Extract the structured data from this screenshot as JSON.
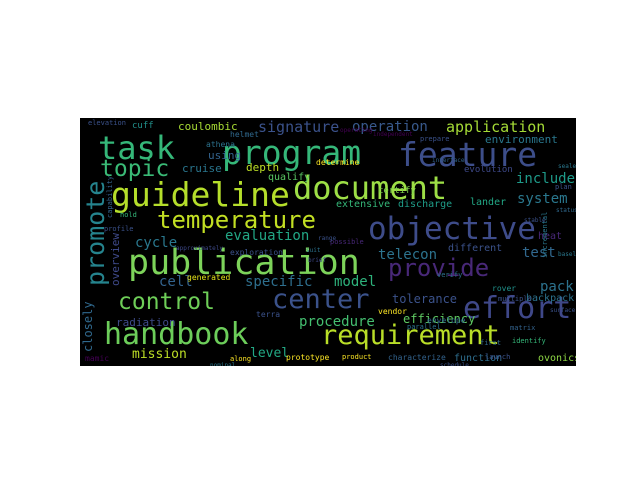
{
  "words": [
    {
      "text": "publication",
      "color": "#7dd35a"
    },
    {
      "text": "document",
      "color": "#9ddf46"
    },
    {
      "text": "guideline",
      "color": "#b5de2b"
    },
    {
      "text": "objective",
      "color": "#3e4c8a"
    },
    {
      "text": "program",
      "color": "#35b779"
    },
    {
      "text": "handbook",
      "color": "#6ccd5a"
    },
    {
      "text": "feature",
      "color": "#3d4e8a"
    },
    {
      "text": "requirement",
      "color": "#b9de28"
    },
    {
      "text": "center",
      "color": "#3b528b"
    },
    {
      "text": "effort",
      "color": "#3f4889"
    },
    {
      "text": "temperature",
      "color": "#c2df23"
    },
    {
      "text": "task",
      "color": "#35b779"
    },
    {
      "text": "provide",
      "color": "#482878"
    },
    {
      "text": "control",
      "color": "#6ece58"
    },
    {
      "text": "topic",
      "color": "#3aba76"
    },
    {
      "text": "promote",
      "color": "#25848e"
    },
    {
      "text": "signature",
      "color": "#3b528b"
    },
    {
      "text": "operation",
      "color": "#38598c"
    },
    {
      "text": "application",
      "color": "#a5db36"
    },
    {
      "text": "include",
      "color": "#1e9b8a"
    },
    {
      "text": "system",
      "color": "#2a788e"
    },
    {
      "text": "evaluation",
      "color": "#22a785"
    },
    {
      "text": "telecon",
      "color": "#2c738e"
    },
    {
      "text": "specific",
      "color": "#2e6f8e"
    },
    {
      "text": "model",
      "color": "#2eb37c"
    },
    {
      "text": "cell",
      "color": "#33638d"
    },
    {
      "text": "cycle",
      "color": "#2a788e"
    },
    {
      "text": "procedure",
      "color": "#44bf70"
    },
    {
      "text": "efficiency",
      "color": "#5ec962"
    },
    {
      "text": "pack",
      "color": "#2c728e"
    },
    {
      "text": "test",
      "color": "#31688e"
    },
    {
      "text": "tolerance",
      "color": "#3b528b"
    },
    {
      "text": "level",
      "color": "#22a884"
    },
    {
      "text": "mission",
      "color": "#bddf26"
    },
    {
      "text": "radiation",
      "color": "#3e4a89"
    },
    {
      "text": "closely",
      "color": "#30698e"
    },
    {
      "text": "overview",
      "color": "#3e4989"
    },
    {
      "text": "coulombic",
      "color": "#a8db34"
    },
    {
      "text": "depth",
      "color": "#bddf26"
    },
    {
      "text": "cruise",
      "color": "#2a768e"
    },
    {
      "text": "qualify",
      "color": "#5ac864"
    },
    {
      "text": "extensive",
      "color": "#35b779"
    },
    {
      "text": "discharge",
      "color": "#1f9e89"
    },
    {
      "text": "using",
      "color": "#33638d"
    },
    {
      "text": "different",
      "color": "#3b528b"
    },
    {
      "text": "lander",
      "color": "#22a785"
    },
    {
      "text": "environment",
      "color": "#2a788e"
    },
    {
      "text": "heat",
      "color": "#482878"
    },
    {
      "text": "backpack",
      "color": "#2c728e"
    },
    {
      "text": "function",
      "color": "#2e6e8e"
    },
    {
      "text": "ovonics",
      "color": "#8ed645"
    },
    {
      "text": "prototype",
      "color": "#fde725"
    },
    {
      "text": "generated",
      "color": "#e5e419"
    },
    {
      "text": "determine",
      "color": "#fde725"
    },
    {
      "text": "evolution",
      "color": "#3e4989"
    },
    {
      "text": "helmet",
      "color": "#30698e"
    },
    {
      "text": "athena",
      "color": "#2c728e"
    },
    {
      "text": "cuff",
      "color": "#21918c"
    },
    {
      "text": "rover",
      "color": "#20928c"
    },
    {
      "text": "vendor",
      "color": "#fde725"
    },
    {
      "text": "parallel",
      "color": "#2c728e"
    },
    {
      "text": "envelope",
      "color": "#31688e"
    },
    {
      "text": "characterize",
      "color": "#33638d"
    },
    {
      "text": "certify",
      "color": "#7fd34e"
    },
    {
      "text": "exploration",
      "color": "#3b528b"
    },
    {
      "text": "terra",
      "color": "#3b528b"
    },
    {
      "text": "mamic",
      "color": "#440154"
    },
    {
      "text": "identify",
      "color": "#35b779"
    },
    {
      "text": "launch",
      "color": "#3b528b"
    },
    {
      "text": "matrix",
      "color": "#33638d"
    },
    {
      "text": "multiple",
      "color": "#3b528b"
    },
    {
      "text": "along",
      "color": "#fde725"
    },
    {
      "text": "first",
      "color": "#30698e"
    },
    {
      "text": "prepare",
      "color": "#3b528b"
    },
    {
      "text": "incremental",
      "color": "#2a788e"
    },
    {
      "text": "elevation",
      "color": "#3b528b"
    },
    {
      "text": "possible",
      "color": "#482878"
    },
    {
      "text": "profile",
      "color": "#3b528b"
    },
    {
      "text": "hold",
      "color": "#35b779"
    },
    {
      "text": "product",
      "color": "#fde725"
    },
    {
      "text": "nominal",
      "color": "#2a788e"
    },
    {
      "text": "approximately",
      "color": "#3e4989"
    },
    {
      "text": "operating",
      "color": "#440154"
    },
    {
      "text": "independent",
      "color": "#440154"
    },
    {
      "text": "stable",
      "color": "#3b528b"
    },
    {
      "text": "sealed",
      "color": "#2a788e"
    },
    {
      "text": "capability",
      "color": "#33638d"
    },
    {
      "text": "verify",
      "color": "#2c728e"
    },
    {
      "text": "plan",
      "color": "#3b528b"
    },
    {
      "text": "range",
      "color": "#3b528b"
    },
    {
      "text": "status",
      "color": "#30698e"
    },
    {
      "text": "brief",
      "color": "#3e4989"
    },
    {
      "text": "baseline",
      "color": "#2a788e"
    },
    {
      "text": "schedule",
      "color": "#3b528b"
    },
    {
      "text": "interface",
      "color": "#33638d"
    },
    {
      "text": "suit",
      "color": "#2c728e"
    },
    {
      "text": "surface",
      "color": "#3b528b"
    }
  ]
}
